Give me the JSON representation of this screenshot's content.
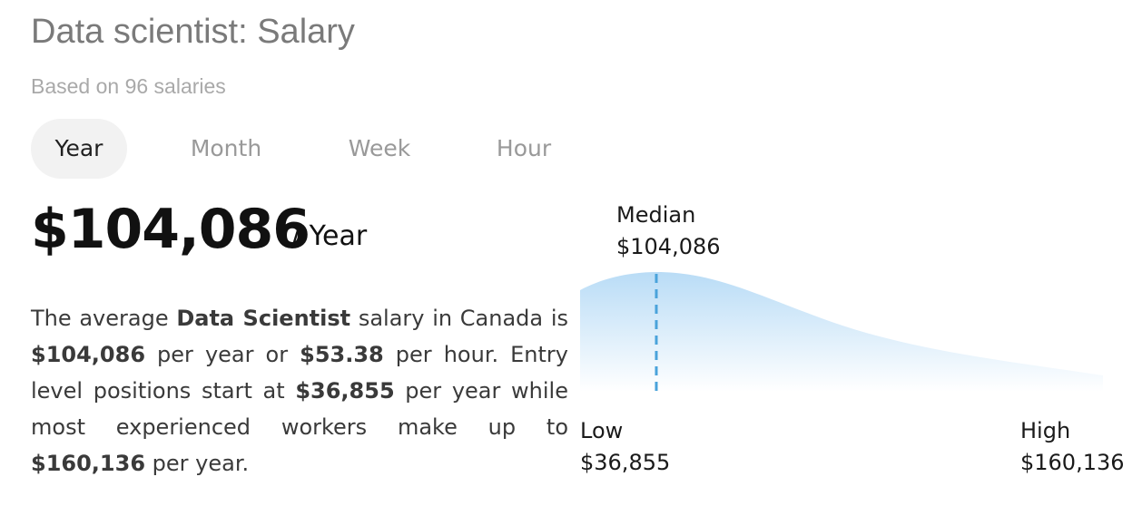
{
  "header": {
    "title": "Data scientist: Salary",
    "subtitle": "Based on 96 salaries"
  },
  "tabs": [
    {
      "label": "Year",
      "active": true
    },
    {
      "label": "Month",
      "active": false
    },
    {
      "label": "Week",
      "active": false
    },
    {
      "label": "Hour",
      "active": false
    }
  ],
  "summary": {
    "amount": "$104,086",
    "per": "/ Year"
  },
  "description": {
    "t1": "The average ",
    "job": "Data Scientist",
    "t2": " salary in Canada is ",
    "yearly": "$104,086",
    "t3": " per year or ",
    "hourly": "$53.38",
    "t4": " per hour. Entry level positions start at ",
    "low": "$36,855",
    "t5": " per year while most experienced workers make up to ",
    "high": "$160,136",
    "t6": " per year."
  },
  "distribution": {
    "median": {
      "label": "Median",
      "value": "$104,086"
    },
    "low": {
      "label": "Low",
      "value": "$36,855"
    },
    "high": {
      "label": "High",
      "value": "$160,136"
    },
    "colors": {
      "fill_top": "#b9dcf6",
      "fill_bottom": "#ffffff",
      "median_line": "#4aa3db"
    }
  }
}
